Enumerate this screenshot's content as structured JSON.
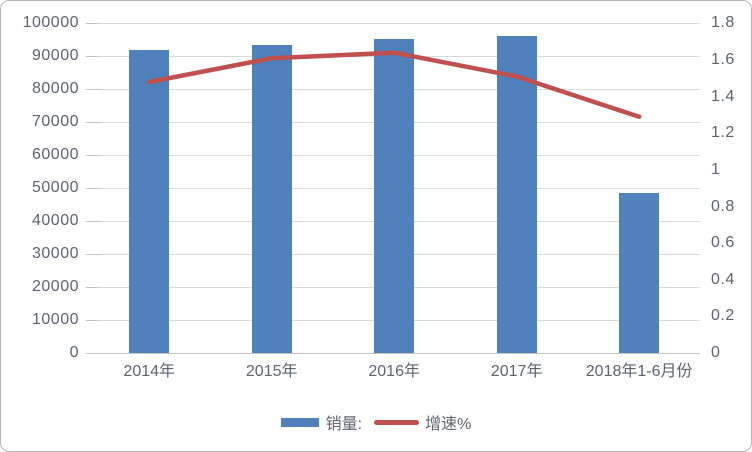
{
  "chart_data": {
    "type": "bar",
    "subtype": "combo-bar-line-dual-axis",
    "categories": [
      "2014年",
      "2015年",
      "2016年",
      "2017年",
      "2018年1-6月份"
    ],
    "series": [
      {
        "name": "销量:",
        "type": "bar",
        "axis": "left",
        "values": [
          92000,
          93500,
          95200,
          96300,
          48500
        ]
      },
      {
        "name": "增速%",
        "type": "line",
        "axis": "right",
        "values": [
          1.48,
          1.61,
          1.64,
          1.51,
          1.29
        ]
      }
    ],
    "title": "",
    "xlabel": "",
    "ylabel": "",
    "left_axis": {
      "min": 0,
      "max": 100000,
      "step": 10000,
      "tick_labels": [
        "100000",
        "90000",
        "80000",
        "70000",
        "60000",
        "50000",
        "40000",
        "30000",
        "20000",
        "10000",
        "0"
      ]
    },
    "right_axis": {
      "min": 0,
      "max": 1.8,
      "step": 0.2,
      "tick_labels": [
        "1.8",
        "1.6",
        "1.4",
        "1.2",
        "1",
        "0.8",
        "0.6",
        "0.4",
        "0.2",
        "0"
      ]
    },
    "grid": true,
    "legend_position": "bottom",
    "legend": {
      "items": [
        {
          "label": "销量:",
          "swatch": "bar"
        },
        {
          "label": "增速%",
          "swatch": "line"
        }
      ]
    },
    "styles": {
      "bar_color": "#4f81bd",
      "line_color": "#c0504d",
      "gridline_color": "#d9d9d9",
      "axis_color": "#c3c3c3",
      "text_color": "#5d6470",
      "border_color": "#b7b7b7",
      "background": "#ffffff"
    }
  }
}
